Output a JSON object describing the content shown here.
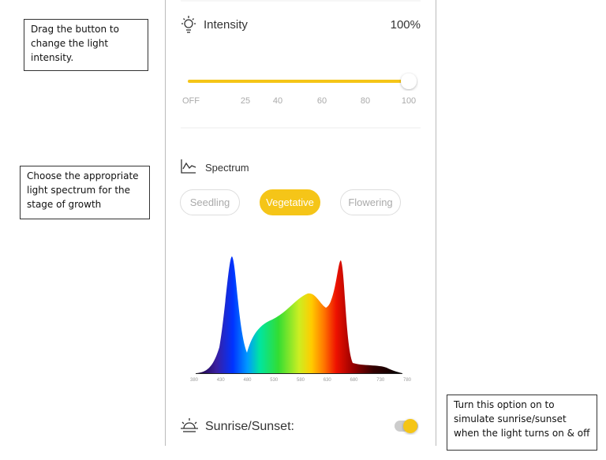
{
  "callouts": {
    "intensity": "Drag the button to change the light intensity.",
    "spectrum": "Choose the appropriate light spectrum for the stage of growth",
    "sunrise": "Turn this option on to simulate sunrise/sunset when the light turns on & off"
  },
  "intensity": {
    "label": "Intensity",
    "value": "100%",
    "slider_labels": [
      "OFF",
      "25",
      "40",
      "60",
      "80",
      "100"
    ]
  },
  "spectrum": {
    "label": "Spectrum",
    "options": [
      "Seedling",
      "Vegetative",
      "Flowering"
    ],
    "axis_labels": [
      "380",
      "430",
      "480",
      "530",
      "580",
      "630",
      "680",
      "730",
      "780"
    ]
  },
  "sunrise": {
    "label": "Sunrise/Sunset:"
  }
}
